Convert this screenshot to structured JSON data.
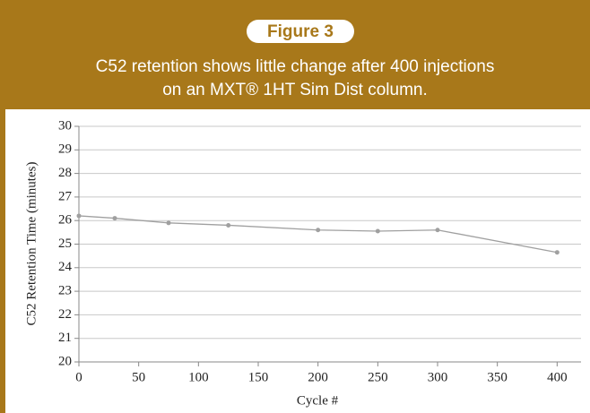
{
  "chart_data": {
    "type": "line",
    "title": "Figure 3",
    "subtitle": [
      "C52 retention shows little change after 400 injections",
      "on an MXT® 1HT Sim Dist column."
    ],
    "xlabel": "Cycle #",
    "ylabel": "C52 Retention Time (minutes)",
    "x": [
      0,
      30,
      75,
      125,
      200,
      250,
      300,
      400
    ],
    "series": [
      {
        "name": "C52",
        "color": "#a0a0a0",
        "values": [
          26.2,
          26.1,
          25.9,
          25.8,
          25.6,
          25.55,
          25.6,
          24.65
        ]
      }
    ],
    "xlim": [
      0,
      420
    ],
    "xticks": [
      0,
      50,
      100,
      150,
      200,
      250,
      300,
      350,
      400
    ],
    "ylim": [
      20,
      30
    ],
    "yticks": [
      20,
      21,
      22,
      23,
      24,
      25,
      26,
      27,
      28,
      29,
      30
    ],
    "grid": true
  }
}
